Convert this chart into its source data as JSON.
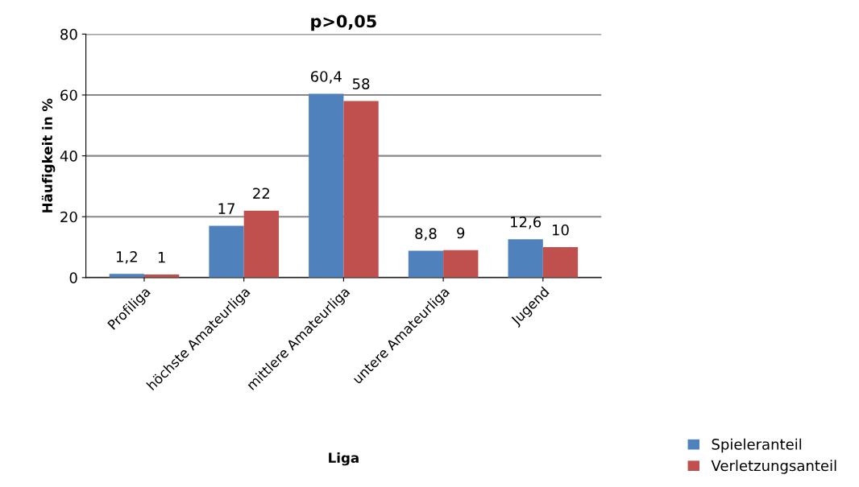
{
  "chart_data": {
    "type": "bar",
    "title": "p>0,05",
    "xlabel": "Liga",
    "ylabel": "Häufigkeit in %",
    "categories": [
      "Profiliga",
      "höchste Amateurliga",
      "mittlere Amateurliga",
      "untere Amateurliga",
      "Jugend"
    ],
    "series": [
      {
        "name": "Spieleranteil",
        "color": "#4f81bd",
        "values": [
          1.2,
          17,
          60.4,
          8.8,
          12.6
        ],
        "value_labels": [
          "1,2",
          "17",
          "60,4",
          "8,8",
          "12,6"
        ]
      },
      {
        "name": "Verletzungsanteil",
        "color": "#c0504d",
        "values": [
          1,
          22,
          58,
          9,
          10
        ],
        "value_labels": [
          "1",
          "22",
          "58",
          "9",
          "10"
        ]
      }
    ],
    "ylim": [
      0,
      80
    ],
    "yticks": [
      0,
      20,
      40,
      60,
      80
    ],
    "grid": "y",
    "legend": "bottom right"
  }
}
